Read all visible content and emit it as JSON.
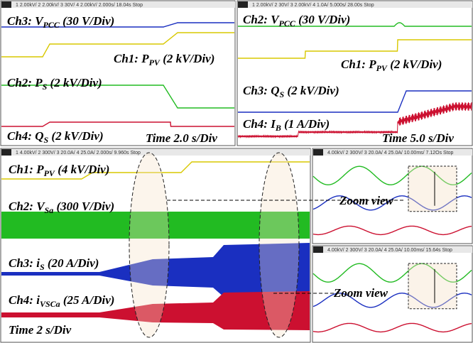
{
  "panels": [
    {
      "header": "1   2.00kV/   2   2.00kV/   3   30V/   4   2.00kV/   2.000s/   18.04s   Stop",
      "labels": [
        {
          "pre": "Ch3: V",
          "sub": "PCC",
          "post": " (30 V/Div)"
        },
        {
          "pre": "Ch1: P",
          "sub": "PV",
          "post": " (2 kV/Div)"
        },
        {
          "pre": "Ch2: P",
          "sub": "S",
          "post": " (2 kV/Div)"
        },
        {
          "pre": "Ch4: Q",
          "sub": "S",
          "post": " (2 kV/Div)"
        }
      ],
      "time": "Time 2.0 s/Div"
    },
    {
      "header": "1   2.00kV/   2   30V/   3   2.00kV/   4   1.0A/   5.000s/   28.00s   Stop",
      "labels": [
        {
          "pre": "Ch2: V",
          "sub": "PCC",
          "post": " (30 V/Div)"
        },
        {
          "pre": "Ch1: P",
          "sub": "PV",
          "post": " (2 kV/Div)"
        },
        {
          "pre": "Ch3: Q",
          "sub": "S",
          "post": " (2 kV/Div)"
        },
        {
          "pre": "Ch4: I",
          "sub": "B",
          "post": " (1 A/Div)"
        }
      ],
      "time": "Time 5.0 s/Div"
    },
    {
      "header": "1   4.00kV/   2   300V/   3   20.0A/   4   25.0A/   2.000s/   9.960s   Stop",
      "labels": [
        {
          "pre": "Ch1: P",
          "sub": "PV",
          "post": " (4 kV/Div)"
        },
        {
          "pre": "Ch2: V",
          "sub": "Sa",
          "post": " (300 V/Div)"
        },
        {
          "pre": "Ch3: i",
          "sub": "S",
          "post": " (20 A/Div)"
        },
        {
          "pre": "Ch4: i",
          "sub": "VSCa",
          "post": " (25 A/Div)"
        }
      ],
      "time": "Time 2 s/Div"
    },
    {
      "header": "4.00kV/   2   300V/   3   20.0A/   4   25.0A/   10.00ms/   7.12Os   Stop",
      "zoom": "Zoom view"
    },
    {
      "header": "4.00kV/   2   300V/   3   20.0A/   4   25.0A/   10.00ms/   15.64s   Stop",
      "zoom": "Zoom view"
    }
  ]
}
